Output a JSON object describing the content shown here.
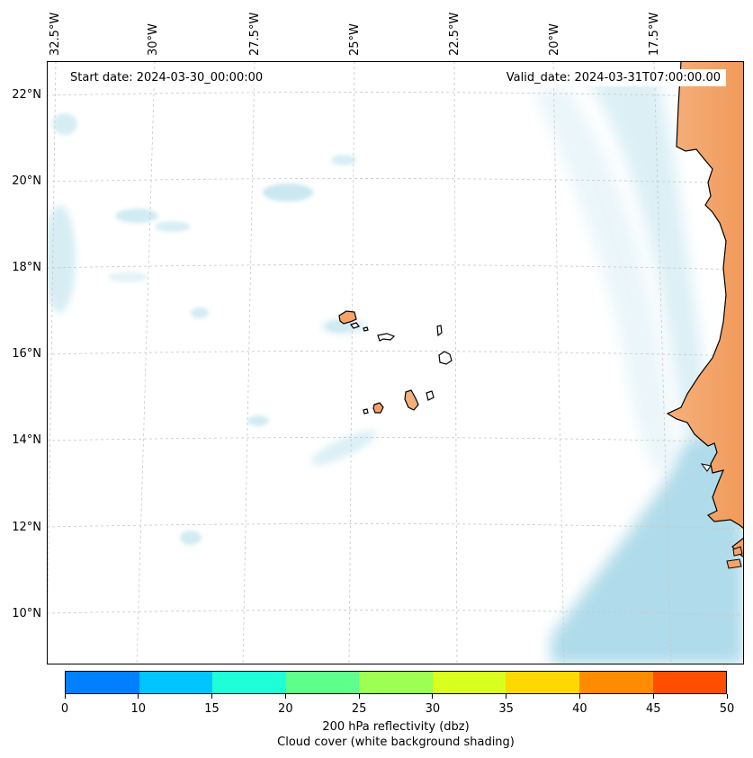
{
  "header": {
    "start_date": "Start date: 2024-03-30_00:00:00",
    "valid_date": "Valid_date: 2024-03-31T07:00:00.00"
  },
  "axes": {
    "longitude_labels": [
      "32.5°W",
      "30°W",
      "27.5°W",
      "25°W",
      "22.5°W",
      "20°W",
      "17.5°W"
    ],
    "latitude_labels": [
      "22°N",
      "20°N",
      "18°N",
      "16°N",
      "14°N",
      "12°N",
      "10°N"
    ]
  },
  "colorbar": {
    "ticks": [
      "0",
      "10",
      "15",
      "20",
      "25",
      "30",
      "35",
      "40",
      "45",
      "50"
    ],
    "colors": [
      "#0080ff",
      "#00c4ff",
      "#1effd8",
      "#5eff8a",
      "#9cff52",
      "#d8ff1e",
      "#ffd800",
      "#ff8c00",
      "#ff4e00"
    ],
    "label": "200 hPa reflectivity (dbz)",
    "sublabel": "Cloud cover (white background shading)"
  },
  "map": {
    "land_color": "#f4a468",
    "cloud_color": "#a8d8e8",
    "coast_color": "#000000"
  }
}
